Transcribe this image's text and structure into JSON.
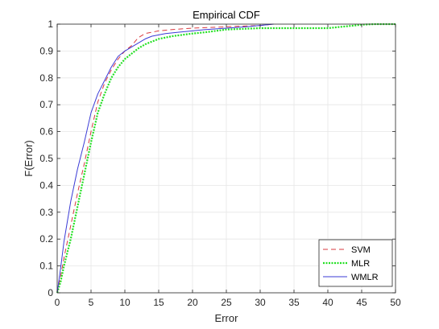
{
  "chart_data": {
    "type": "line",
    "title": "Empirical CDF",
    "xlabel": "Error",
    "ylabel": "F(Error)",
    "xlim": [
      0,
      50
    ],
    "ylim": [
      0,
      1
    ],
    "xticks": [
      "0",
      "5",
      "10",
      "15",
      "20",
      "25",
      "30",
      "35",
      "40",
      "45",
      "50"
    ],
    "yticks": [
      "0",
      "0.1",
      "0.2",
      "0.3",
      "0.4",
      "0.5",
      "0.6",
      "0.7",
      "0.8",
      "0.9",
      "1"
    ],
    "grid": true,
    "legend_position": "bottom-right",
    "series": [
      {
        "name": "SVM",
        "color": "#d9393f",
        "style": "dashed",
        "x": [
          0,
          0.5,
          1,
          2,
          3,
          4,
          5,
          6,
          7,
          8,
          9,
          10,
          11,
          12,
          13,
          14,
          15,
          17,
          20,
          25,
          30,
          32
        ],
        "y": [
          0,
          0.06,
          0.13,
          0.25,
          0.37,
          0.48,
          0.6,
          0.71,
          0.78,
          0.83,
          0.87,
          0.9,
          0.92,
          0.95,
          0.965,
          0.97,
          0.975,
          0.98,
          0.985,
          0.99,
          0.995,
          1.0
        ]
      },
      {
        "name": "MLR",
        "color": "#22e022",
        "style": "dotted",
        "x": [
          0,
          0.5,
          1,
          2,
          3,
          4,
          5,
          6,
          7,
          8,
          9,
          10,
          11,
          12,
          13,
          14,
          15,
          17,
          20,
          22,
          25,
          30,
          35,
          40,
          42,
          44,
          45,
          47,
          50
        ],
        "y": [
          0,
          0.04,
          0.1,
          0.2,
          0.32,
          0.44,
          0.56,
          0.67,
          0.74,
          0.8,
          0.84,
          0.87,
          0.89,
          0.91,
          0.925,
          0.935,
          0.945,
          0.955,
          0.965,
          0.97,
          0.98,
          0.985,
          0.985,
          0.985,
          0.99,
          0.995,
          0.998,
          1.0,
          1.0
        ]
      },
      {
        "name": "WMLR",
        "color": "#3b3bd6",
        "style": "solid",
        "x": [
          0,
          0.5,
          1,
          2,
          3,
          4,
          5,
          6,
          7,
          8,
          9,
          10,
          11,
          12,
          13,
          14,
          15,
          16,
          18,
          20,
          22,
          25,
          28,
          32
        ],
        "y": [
          0,
          0.09,
          0.19,
          0.34,
          0.46,
          0.56,
          0.67,
          0.74,
          0.79,
          0.84,
          0.88,
          0.9,
          0.915,
          0.93,
          0.945,
          0.955,
          0.96,
          0.965,
          0.97,
          0.975,
          0.98,
          0.985,
          0.99,
          1.0
        ]
      }
    ]
  }
}
